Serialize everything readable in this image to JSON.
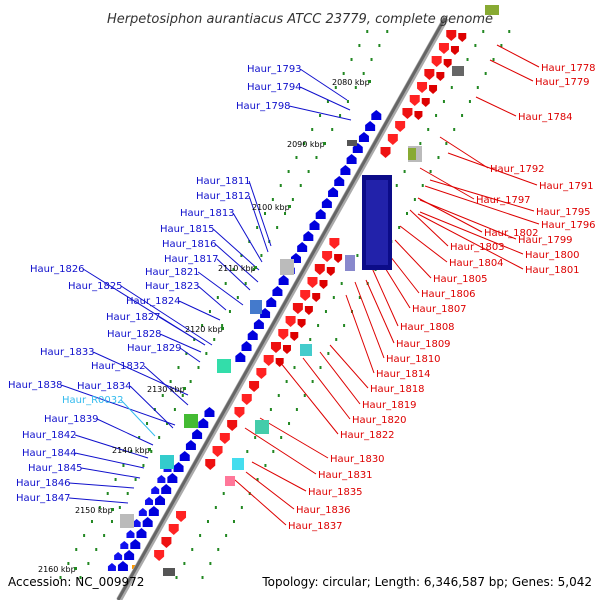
{
  "title": "Herpetosiphon aurantiacus ATCC 23779, complete genome",
  "footer": {
    "accession": "Accession: NC_009972",
    "summary": "Topology: circular; Length: 6,346,587 bp; Genes: 5,042"
  },
  "colors": {
    "forward_label": "#1010cc",
    "reverse_label": "#dd0000",
    "rna_label": "#33bbee",
    "backbone": "#888888",
    "tick": "#228822"
  },
  "kbp_markers": [
    "2080 kbp",
    "2090 kbp",
    "2100 kbp",
    "2110 kbp",
    "2120 kbp",
    "2130 kbp",
    "2140 kbp",
    "2150 kbp",
    "2160 kbp"
  ],
  "left_labels": [
    {
      "text": "Haur_1793"
    },
    {
      "text": "Haur_1794"
    },
    {
      "text": "Haur_1798"
    },
    {
      "text": "Haur_1811"
    },
    {
      "text": "Haur_1812"
    },
    {
      "text": "Haur_1813"
    },
    {
      "text": "Haur_1815"
    },
    {
      "text": "Haur_1816"
    },
    {
      "text": "Haur_1817"
    },
    {
      "text": "Haur_1821"
    },
    {
      "text": "Haur_1826"
    },
    {
      "text": "Haur_1823"
    },
    {
      "text": "Haur_1825"
    },
    {
      "text": "Haur_1824"
    },
    {
      "text": "Haur_1827"
    },
    {
      "text": "Haur_1828"
    },
    {
      "text": "Haur_1829"
    },
    {
      "text": "Haur_1833"
    },
    {
      "text": "Haur_1832"
    },
    {
      "text": "Haur_1838"
    },
    {
      "text": "Haur_1834"
    },
    {
      "text": "Haur_R0032",
      "rna": true
    },
    {
      "text": "Haur_1839"
    },
    {
      "text": "Haur_1842"
    },
    {
      "text": "Haur_1844"
    },
    {
      "text": "Haur_1845"
    },
    {
      "text": "Haur_1846"
    },
    {
      "text": "Haur_1847"
    }
  ],
  "right_labels": [
    {
      "text": "Haur_1778"
    },
    {
      "text": "Haur_1779"
    },
    {
      "text": "Haur_1784"
    },
    {
      "text": "Haur_1792"
    },
    {
      "text": "Haur_1791"
    },
    {
      "text": "Haur_1797"
    },
    {
      "text": "Haur_1795"
    },
    {
      "text": "Haur_1796"
    },
    {
      "text": "Haur_1802"
    },
    {
      "text": "Haur_1799"
    },
    {
      "text": "Haur_1803"
    },
    {
      "text": "Haur_1800"
    },
    {
      "text": "Haur_1804"
    },
    {
      "text": "Haur_1801"
    },
    {
      "text": "Haur_1805"
    },
    {
      "text": "Haur_1806"
    },
    {
      "text": "Haur_1807"
    },
    {
      "text": "Haur_1808"
    },
    {
      "text": "Haur_1809"
    },
    {
      "text": "Haur_1810"
    },
    {
      "text": "Haur_1814"
    },
    {
      "text": "Haur_1818"
    },
    {
      "text": "Haur_1819"
    },
    {
      "text": "Haur_1820"
    },
    {
      "text": "Haur_1822"
    },
    {
      "text": "Haur_1830"
    },
    {
      "text": "Haur_1831"
    },
    {
      "text": "Haur_1835"
    },
    {
      "text": "Haur_1836"
    },
    {
      "text": "Haur_1837"
    }
  ]
}
